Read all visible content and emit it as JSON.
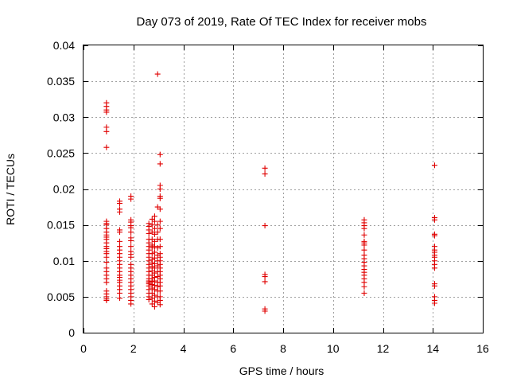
{
  "chart_data": {
    "type": "scatter",
    "title": "Day 073 of 2019, Rate Of TEC Index for receiver mobs",
    "xlabel": "GPS time / hours",
    "ylabel": "ROTI / TECUs",
    "xlim": [
      0,
      16
    ],
    "ylim": [
      0,
      0.04
    ],
    "xticks": [
      "0",
      "2",
      "4",
      "6",
      "8",
      "10",
      "12",
      "14",
      "16"
    ],
    "yticks": [
      "0",
      "0.005",
      "0.01",
      "0.015",
      "0.02",
      "0.025",
      "0.03",
      "0.035",
      "0.04"
    ],
    "grid": true,
    "marker": "+",
    "color": "#e00000",
    "series": [
      {
        "name": "ROTI",
        "points": [
          [
            0.92,
            0.032
          ],
          [
            0.92,
            0.0315
          ],
          [
            0.92,
            0.031
          ],
          [
            0.92,
            0.0307
          ],
          [
            0.92,
            0.0286
          ],
          [
            0.92,
            0.028
          ],
          [
            0.92,
            0.0258
          ],
          [
            0.92,
            0.0155
          ],
          [
            0.92,
            0.0152
          ],
          [
            0.92,
            0.015
          ],
          [
            0.92,
            0.0145
          ],
          [
            0.92,
            0.014
          ],
          [
            0.92,
            0.0136
          ],
          [
            0.92,
            0.0133
          ],
          [
            0.92,
            0.013
          ],
          [
            0.92,
            0.0125
          ],
          [
            0.92,
            0.012
          ],
          [
            0.92,
            0.0117
          ],
          [
            0.92,
            0.0113
          ],
          [
            0.92,
            0.011
          ],
          [
            0.92,
            0.0105
          ],
          [
            0.92,
            0.0098
          ],
          [
            0.92,
            0.009
          ],
          [
            0.92,
            0.0085
          ],
          [
            0.92,
            0.008
          ],
          [
            0.92,
            0.0075
          ],
          [
            0.92,
            0.007
          ],
          [
            0.92,
            0.0058
          ],
          [
            0.92,
            0.0054
          ],
          [
            0.92,
            0.005
          ],
          [
            0.92,
            0.0047
          ],
          [
            0.92,
            0.0045
          ],
          [
            1.45,
            0.0183
          ],
          [
            1.45,
            0.018
          ],
          [
            1.45,
            0.0172
          ],
          [
            1.45,
            0.0168
          ],
          [
            1.45,
            0.0143
          ],
          [
            1.45,
            0.014
          ],
          [
            1.45,
            0.0127
          ],
          [
            1.45,
            0.012
          ],
          [
            1.45,
            0.0115
          ],
          [
            1.45,
            0.011
          ],
          [
            1.45,
            0.0105
          ],
          [
            1.45,
            0.01
          ],
          [
            1.45,
            0.0095
          ],
          [
            1.45,
            0.009
          ],
          [
            1.45,
            0.0085
          ],
          [
            1.45,
            0.008
          ],
          [
            1.45,
            0.0077
          ],
          [
            1.45,
            0.0073
          ],
          [
            1.45,
            0.007
          ],
          [
            1.45,
            0.0065
          ],
          [
            1.45,
            0.006
          ],
          [
            1.45,
            0.0055
          ],
          [
            1.45,
            0.0048
          ],
          [
            1.9,
            0.019
          ],
          [
            1.9,
            0.0186
          ],
          [
            1.9,
            0.0157
          ],
          [
            1.9,
            0.0154
          ],
          [
            1.9,
            0.0149
          ],
          [
            1.9,
            0.0146
          ],
          [
            1.9,
            0.014
          ],
          [
            1.9,
            0.0132
          ],
          [
            1.9,
            0.0128
          ],
          [
            1.9,
            0.012
          ],
          [
            1.9,
            0.0113
          ],
          [
            1.9,
            0.0109
          ],
          [
            1.9,
            0.0105
          ],
          [
            1.9,
            0.0095
          ],
          [
            1.9,
            0.009
          ],
          [
            1.9,
            0.0085
          ],
          [
            1.9,
            0.008
          ],
          [
            1.9,
            0.0075
          ],
          [
            1.9,
            0.007
          ],
          [
            1.9,
            0.0065
          ],
          [
            1.9,
            0.006
          ],
          [
            1.9,
            0.0055
          ],
          [
            1.9,
            0.005
          ],
          [
            1.9,
            0.0045
          ],
          [
            1.9,
            0.004
          ],
          [
            2.62,
            0.0152
          ],
          [
            2.62,
            0.0148
          ],
          [
            2.62,
            0.0143
          ],
          [
            2.62,
            0.0138
          ],
          [
            2.62,
            0.013
          ],
          [
            2.62,
            0.0125
          ],
          [
            2.62,
            0.012
          ],
          [
            2.62,
            0.0115
          ],
          [
            2.62,
            0.011
          ],
          [
            2.62,
            0.0105
          ],
          [
            2.62,
            0.01
          ],
          [
            2.62,
            0.0095
          ],
          [
            2.62,
            0.009
          ],
          [
            2.62,
            0.0085
          ],
          [
            2.62,
            0.008
          ],
          [
            2.62,
            0.0075
          ],
          [
            2.62,
            0.0072
          ],
          [
            2.62,
            0.007
          ],
          [
            2.62,
            0.0068
          ],
          [
            2.62,
            0.0065
          ],
          [
            2.62,
            0.006
          ],
          [
            2.62,
            0.0055
          ],
          [
            2.62,
            0.005
          ],
          [
            2.62,
            0.0046
          ],
          [
            2.75,
            0.0158
          ],
          [
            2.75,
            0.015
          ],
          [
            2.75,
            0.014
          ],
          [
            2.75,
            0.013
          ],
          [
            2.75,
            0.0122
          ],
          [
            2.75,
            0.0118
          ],
          [
            2.75,
            0.011
          ],
          [
            2.75,
            0.0102
          ],
          [
            2.75,
            0.0097
          ],
          [
            2.75,
            0.0092
          ],
          [
            2.75,
            0.0086
          ],
          [
            2.75,
            0.008
          ],
          [
            2.75,
            0.0075
          ],
          [
            2.75,
            0.0071
          ],
          [
            2.75,
            0.0067
          ],
          [
            2.75,
            0.0062
          ],
          [
            2.75,
            0.0055
          ],
          [
            2.75,
            0.0048
          ],
          [
            2.75,
            0.004
          ],
          [
            2.85,
            0.0162
          ],
          [
            2.85,
            0.0155
          ],
          [
            2.85,
            0.0145
          ],
          [
            2.85,
            0.0137
          ],
          [
            2.85,
            0.0127
          ],
          [
            2.85,
            0.012
          ],
          [
            2.85,
            0.0112
          ],
          [
            2.85,
            0.0104
          ],
          [
            2.85,
            0.0096
          ],
          [
            2.85,
            0.009
          ],
          [
            2.85,
            0.0083
          ],
          [
            2.85,
            0.0077
          ],
          [
            2.85,
            0.0072
          ],
          [
            2.85,
            0.0066
          ],
          [
            2.85,
            0.006
          ],
          [
            2.85,
            0.0052
          ],
          [
            2.85,
            0.0044
          ],
          [
            2.85,
            0.0036
          ],
          [
            2.97,
            0.036
          ],
          [
            2.97,
            0.0175
          ],
          [
            2.97,
            0.015
          ],
          [
            2.97,
            0.014
          ],
          [
            2.97,
            0.013
          ],
          [
            2.97,
            0.0118
          ],
          [
            2.97,
            0.0108
          ],
          [
            2.97,
            0.01
          ],
          [
            2.97,
            0.0093
          ],
          [
            2.97,
            0.0085
          ],
          [
            2.97,
            0.0078
          ],
          [
            2.97,
            0.007
          ],
          [
            2.97,
            0.0064
          ],
          [
            2.97,
            0.0058
          ],
          [
            2.97,
            0.005
          ],
          [
            2.97,
            0.0042
          ],
          [
            3.07,
            0.0248
          ],
          [
            3.07,
            0.0235
          ],
          [
            3.07,
            0.0205
          ],
          [
            3.07,
            0.02
          ],
          [
            3.07,
            0.019
          ],
          [
            3.07,
            0.0187
          ],
          [
            3.07,
            0.0172
          ],
          [
            3.07,
            0.0155
          ],
          [
            3.07,
            0.0145
          ],
          [
            3.07,
            0.013
          ],
          [
            3.07,
            0.012
          ],
          [
            3.07,
            0.011
          ],
          [
            3.07,
            0.0105
          ],
          [
            3.07,
            0.01
          ],
          [
            3.07,
            0.0095
          ],
          [
            3.07,
            0.009
          ],
          [
            3.07,
            0.0085
          ],
          [
            3.07,
            0.008
          ],
          [
            3.07,
            0.0075
          ],
          [
            3.07,
            0.007
          ],
          [
            3.07,
            0.0065
          ],
          [
            3.07,
            0.0058
          ],
          [
            3.07,
            0.005
          ],
          [
            3.07,
            0.0045
          ],
          [
            3.07,
            0.0039
          ],
          [
            7.27,
            0.0229
          ],
          [
            7.27,
            0.0221
          ],
          [
            7.27,
            0.0149
          ],
          [
            7.27,
            0.0081
          ],
          [
            7.27,
            0.0078
          ],
          [
            7.27,
            0.0071
          ],
          [
            7.27,
            0.0033
          ],
          [
            7.27,
            0.003
          ],
          [
            11.25,
            0.0157
          ],
          [
            11.25,
            0.0153
          ],
          [
            11.25,
            0.0149
          ],
          [
            11.25,
            0.0145
          ],
          [
            11.25,
            0.0136
          ],
          [
            11.25,
            0.0127
          ],
          [
            11.25,
            0.0125
          ],
          [
            11.25,
            0.0122
          ],
          [
            11.25,
            0.0115
          ],
          [
            11.25,
            0.0108
          ],
          [
            11.25,
            0.0103
          ],
          [
            11.25,
            0.0098
          ],
          [
            11.25,
            0.0093
          ],
          [
            11.25,
            0.0088
          ],
          [
            11.25,
            0.0084
          ],
          [
            11.25,
            0.008
          ],
          [
            11.25,
            0.0075
          ],
          [
            11.25,
            0.007
          ],
          [
            11.25,
            0.0064
          ],
          [
            11.25,
            0.0055
          ],
          [
            14.07,
            0.0233
          ],
          [
            14.07,
            0.016
          ],
          [
            14.07,
            0.0157
          ],
          [
            14.07,
            0.0137
          ],
          [
            14.07,
            0.0135
          ],
          [
            14.07,
            0.012
          ],
          [
            14.07,
            0.0115
          ],
          [
            14.07,
            0.0112
          ],
          [
            14.07,
            0.0108
          ],
          [
            14.07,
            0.0105
          ],
          [
            14.07,
            0.01
          ],
          [
            14.07,
            0.0095
          ],
          [
            14.07,
            0.009
          ],
          [
            14.07,
            0.0068
          ],
          [
            14.07,
            0.0065
          ],
          [
            14.07,
            0.005
          ],
          [
            14.07,
            0.0045
          ],
          [
            14.07,
            0.0041
          ]
        ]
      }
    ]
  }
}
